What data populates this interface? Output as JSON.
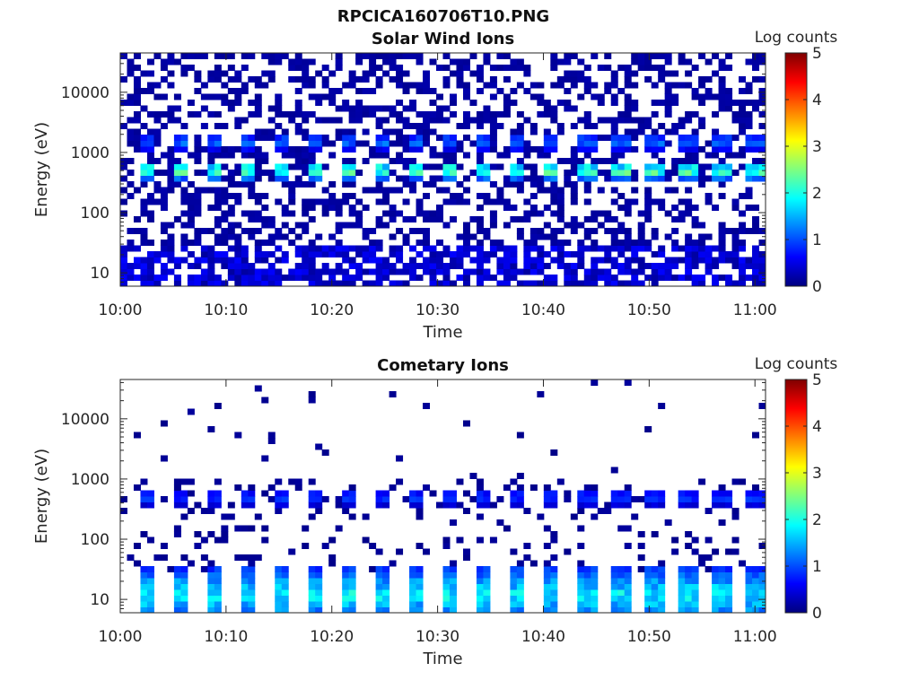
{
  "figure_title": "RPCICA160706T10.PNG",
  "colormap": {
    "stops": [
      "#00007f",
      "#0000ff",
      "#007fff",
      "#00ffff",
      "#7fff7f",
      "#ffff00",
      "#ff7f00",
      "#ff0000",
      "#7f0000"
    ]
  },
  "chart_data": [
    {
      "type": "heatmap",
      "title": "Solar Wind Ions",
      "xlabel": "Time",
      "ylabel": "Energy (eV)",
      "x_ticks": [
        "10:00",
        "10:10",
        "10:20",
        "10:30",
        "10:40",
        "10:50",
        "11:00"
      ],
      "x_tick_minutes": [
        0,
        10,
        20,
        30,
        40,
        50,
        60
      ],
      "xlim_minutes": [
        0,
        61
      ],
      "y_scale": "log",
      "y_ticks": [
        "10",
        "100",
        "1000",
        "10000"
      ],
      "y_tick_values": [
        10,
        100,
        1000,
        10000
      ],
      "ylim": [
        6,
        45000
      ],
      "colorbar": {
        "label": "Log counts",
        "range": [
          0,
          5
        ],
        "ticks": [
          "0",
          "1",
          "2",
          "3",
          "4",
          "5"
        ]
      },
      "peak_bands": [
        {
          "energy_eV": 500,
          "log_counts": 2.6
        },
        {
          "energy_eV": 1500,
          "log_counts": 1.3
        }
      ],
      "scan_period_minutes": 3.2,
      "background_level": 0.1
    },
    {
      "type": "heatmap",
      "title": "Cometary Ions",
      "xlabel": "Time",
      "ylabel": "Energy (eV)",
      "x_ticks": [
        "10:00",
        "10:10",
        "10:20",
        "10:30",
        "10:40",
        "10:50",
        "11:00"
      ],
      "x_tick_minutes": [
        0,
        10,
        20,
        30,
        40,
        50,
        60
      ],
      "xlim_minutes": [
        0,
        61
      ],
      "y_scale": "log",
      "y_ticks": [
        "10",
        "100",
        "1000",
        "10000"
      ],
      "y_tick_values": [
        10,
        100,
        1000,
        10000
      ],
      "ylim": [
        6,
        45000
      ],
      "colorbar": {
        "label": "Log counts",
        "range": [
          0,
          5
        ],
        "ticks": [
          "0",
          "1",
          "2",
          "3",
          "4",
          "5"
        ]
      },
      "peak_bands": [
        {
          "energy_eV": 500,
          "log_counts": 1.0
        },
        {
          "energy_eV": 12,
          "log_counts": 2.0
        }
      ],
      "scan_period_minutes": 3.2,
      "background_level": 0.05
    }
  ]
}
